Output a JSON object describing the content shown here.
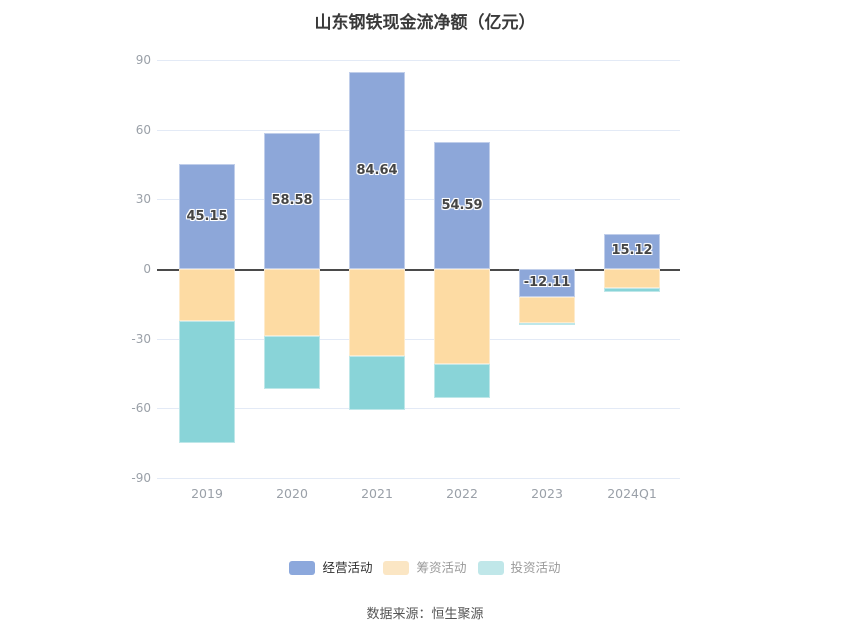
{
  "title": "山东钢铁现金流净额（亿元）",
  "source": "数据来源：恒生聚源",
  "colors": {
    "operating": "#8DA7D9",
    "financing": "#FDDBA3",
    "investing": "#89D4D8",
    "zero_line": "#4a4a4a",
    "gridline": "#e3eaf6",
    "axis_text": "#9aa0a8"
  },
  "chart_data": {
    "type": "bar",
    "stacked": true,
    "title": "山东钢铁现金流净额（亿元）",
    "categories": [
      "2019",
      "2020",
      "2021",
      "2022",
      "2023",
      "2024Q1"
    ],
    "series": [
      {
        "key": "operating",
        "name": "经营活动",
        "color": "#8DA7D9",
        "legend_swatch": "#8CA8DC",
        "label_color": "#2e2e2e",
        "show_labels": true,
        "values": [
          45.15,
          58.58,
          84.64,
          54.59,
          -12.11,
          15.12
        ],
        "labels": [
          "45.15",
          "58.58",
          "84.64",
          "54.59",
          "-12.11",
          "15.12"
        ]
      },
      {
        "key": "financing",
        "name": "筹资活动",
        "color": "#FDDBA3",
        "legend_swatch": "#FBE6C4",
        "label_color": "#999999",
        "show_labels": false,
        "values": [
          -22.3,
          -28.8,
          -37.4,
          -41.0,
          -11.1,
          -8.2
        ]
      },
      {
        "key": "investing",
        "name": "投资活动",
        "color": "#89D4D8",
        "legend_swatch": "#C0E7E9",
        "label_color": "#999999",
        "show_labels": false,
        "values": [
          -52.7,
          -23.0,
          -23.3,
          -14.4,
          -1.1,
          -1.5
        ]
      }
    ],
    "xlabel": "",
    "ylabel": "",
    "ylim": [
      -90,
      90
    ],
    "yticks": [
      90,
      60,
      30,
      0,
      -30,
      -60,
      -90
    ],
    "grid": true,
    "legend_position": "bottom"
  }
}
